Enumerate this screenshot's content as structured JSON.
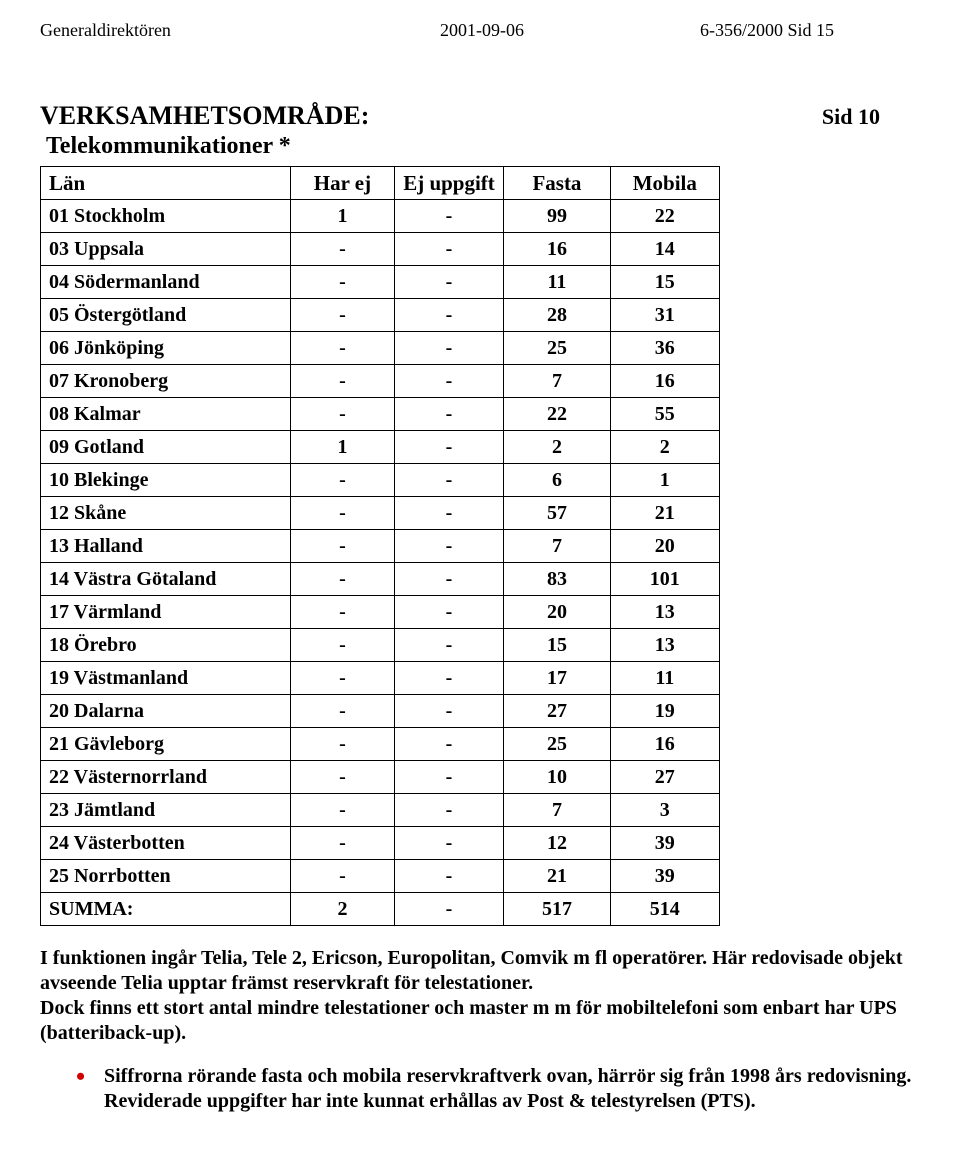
{
  "header": {
    "left": "Generaldirektören",
    "date": "2001-09-06",
    "ref": "6-356/2000   Sid 15"
  },
  "title": "VERKSAMHETSOMRÅDE:",
  "sid_label": "Sid 10",
  "subtitle": "Telekommunikationer *",
  "table": {
    "columns": [
      "Län",
      "Har ej",
      "Ej uppgift",
      "Fasta",
      "Mobila"
    ],
    "rows": [
      [
        "01 Stockholm",
        "1",
        "-",
        "99",
        "22"
      ],
      [
        "03 Uppsala",
        "-",
        "-",
        "16",
        "14"
      ],
      [
        "04 Södermanland",
        "-",
        "-",
        "11",
        "15"
      ],
      [
        "05 Östergötland",
        "-",
        "-",
        "28",
        "31"
      ],
      [
        "06 Jönköping",
        "-",
        "-",
        "25",
        "36"
      ],
      [
        "07 Kronoberg",
        "-",
        "-",
        "7",
        "16"
      ],
      [
        "08 Kalmar",
        "-",
        "-",
        "22",
        "55"
      ],
      [
        "09 Gotland",
        "1",
        "-",
        "2",
        "2"
      ],
      [
        "10 Blekinge",
        "-",
        "-",
        "6",
        "1"
      ],
      [
        "12 Skåne",
        "-",
        "-",
        "57",
        "21"
      ],
      [
        "13 Halland",
        "-",
        "-",
        "7",
        "20"
      ],
      [
        "14 Västra Götaland",
        "-",
        "-",
        "83",
        "101"
      ],
      [
        "17 Värmland",
        "-",
        "-",
        "20",
        "13"
      ],
      [
        "18 Örebro",
        "-",
        "-",
        "15",
        "13"
      ],
      [
        "19 Västmanland",
        "-",
        "-",
        "17",
        "11"
      ],
      [
        "20 Dalarna",
        "-",
        "-",
        "27",
        "19"
      ],
      [
        "21 Gävleborg",
        "-",
        "-",
        "25",
        "16"
      ],
      [
        "22 Västernorrland",
        "-",
        "-",
        "10",
        "27"
      ],
      [
        "23 Jämtland",
        "-",
        "-",
        "7",
        "3"
      ],
      [
        "24 Västerbotten",
        "-",
        "-",
        "12",
        "39"
      ],
      [
        "25 Norrbotten",
        "-",
        "-",
        "21",
        "39"
      ],
      [
        "SUMMA:",
        "2",
        "-",
        "517",
        "514"
      ]
    ]
  },
  "para1": "I funktionen ingår Telia, Tele 2, Ericson, Europolitan, Comvik m fl operatörer. Här redovisade objekt avseende Telia upptar främst reservkraft för telestationer.",
  "para2": "Dock finns ett stort antal mindre telestationer och master m m för mobiltelefoni som enbart har UPS (batteriback-up).",
  "bullet": "Siffrorna rörande fasta och mobila reservkraftverk ovan, härrör sig från 1998 års redovisning. Reviderade uppgifter har inte kunnat erhållas av Post & telestyrelsen (PTS)."
}
